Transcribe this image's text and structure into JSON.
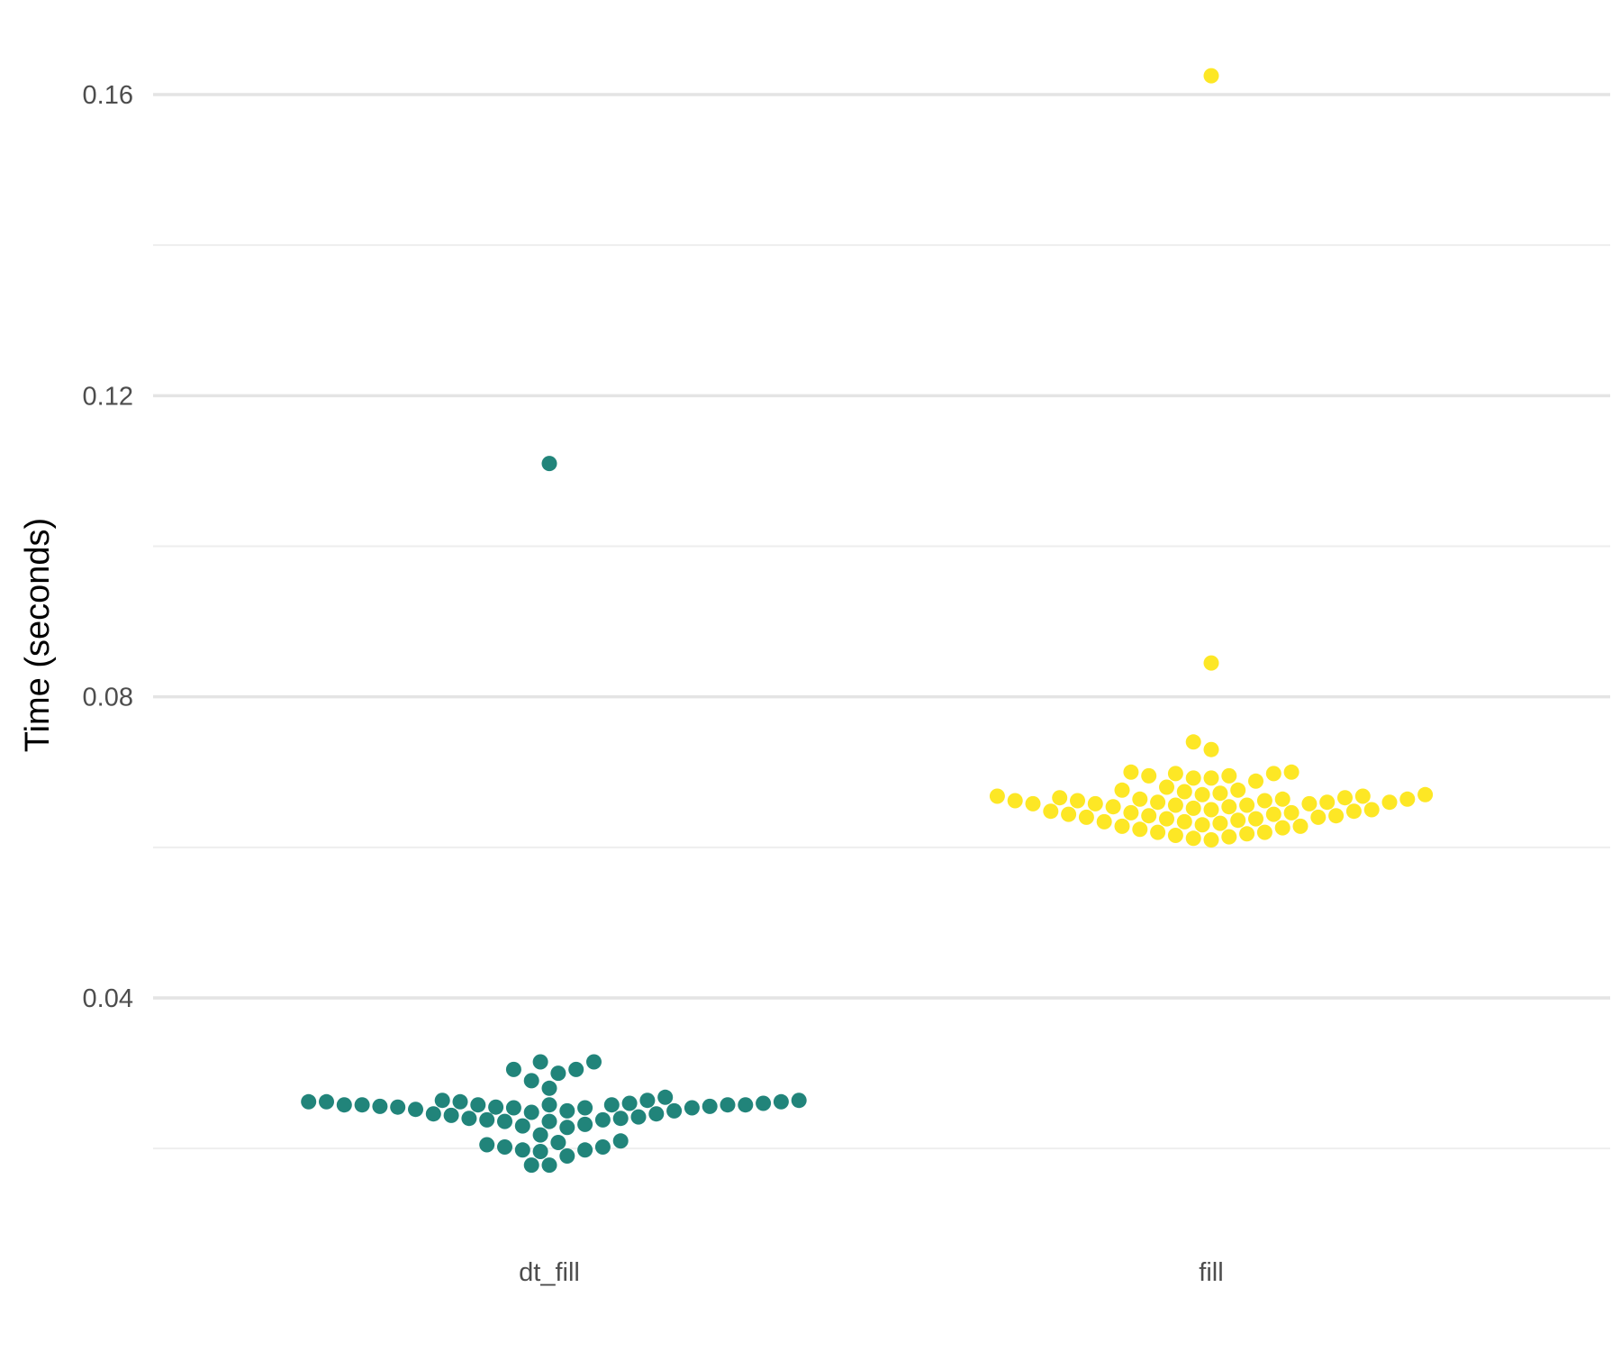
{
  "chart_data": {
    "type": "scatter",
    "subtype": "beeswarm",
    "title": "",
    "xlabel": "",
    "ylabel": "Time (seconds)",
    "ylim": [
      0.014,
      0.168
    ],
    "y_major_ticks": [
      0.04,
      0.08,
      0.12,
      0.16
    ],
    "y_tick_labels": [
      "0.04",
      "0.08",
      "0.12",
      "0.16"
    ],
    "y_minor_ticks": [
      0.02,
      0.06,
      0.1,
      0.14
    ],
    "categories": [
      "dt_fill",
      "fill"
    ],
    "grid": true,
    "legend": "none",
    "series": [
      {
        "category": "dt_fill",
        "color": "#21847a",
        "values": [
          0.111,
          0.0315,
          0.0315,
          0.0305,
          0.0305,
          0.03,
          0.029,
          0.028,
          0.0268,
          0.0264,
          0.0264,
          0.0264,
          0.0262,
          0.0262,
          0.0262,
          0.0262,
          0.026,
          0.026,
          0.0258,
          0.0258,
          0.0258,
          0.0258,
          0.0258,
          0.0258,
          0.0258,
          0.0256,
          0.0256,
          0.0255,
          0.0255,
          0.0254,
          0.0254,
          0.0254,
          0.0252,
          0.025,
          0.025,
          0.0248,
          0.0246,
          0.0246,
          0.0244,
          0.0242,
          0.024,
          0.024,
          0.0238,
          0.0238,
          0.0236,
          0.0236,
          0.0232,
          0.023,
          0.0228,
          0.0218,
          0.021,
          0.0208,
          0.0205,
          0.0202,
          0.0202,
          0.0198,
          0.0198,
          0.0196,
          0.019,
          0.0178,
          0.0178
        ]
      },
      {
        "category": "fill",
        "color": "#fde725",
        "values": [
          0.1625,
          0.0845,
          0.074,
          0.073,
          0.07,
          0.07,
          0.0698,
          0.0698,
          0.0695,
          0.0695,
          0.0692,
          0.0692,
          0.0688,
          0.068,
          0.0676,
          0.0676,
          0.0674,
          0.0672,
          0.067,
          0.067,
          0.0668,
          0.0668,
          0.0666,
          0.0666,
          0.0664,
          0.0664,
          0.0664,
          0.0662,
          0.0662,
          0.0662,
          0.066,
          0.066,
          0.066,
          0.0658,
          0.0658,
          0.0658,
          0.0656,
          0.0656,
          0.0654,
          0.0654,
          0.0652,
          0.065,
          0.065,
          0.0648,
          0.0648,
          0.0646,
          0.0646,
          0.0644,
          0.0644,
          0.0642,
          0.0642,
          0.064,
          0.064,
          0.0638,
          0.0638,
          0.0636,
          0.0634,
          0.0634,
          0.0632,
          0.063,
          0.0628,
          0.0628,
          0.0626,
          0.0624,
          0.062,
          0.062,
          0.0618,
          0.0616,
          0.0614,
          0.0612,
          0.061
        ]
      }
    ]
  }
}
